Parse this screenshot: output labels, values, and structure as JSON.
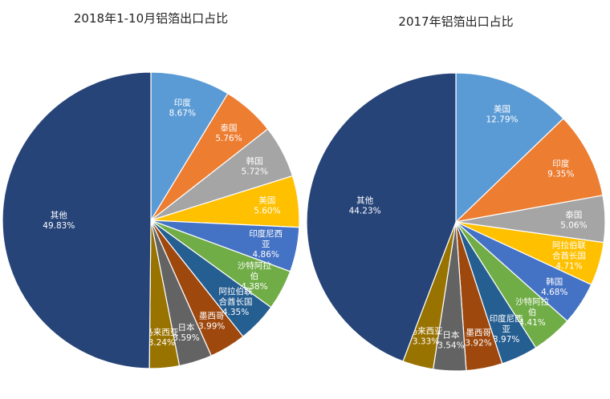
{
  "chart_data": [
    {
      "type": "pie",
      "title": "2018年1-10月铝箔出口占比",
      "slices": [
        {
          "name": "印度",
          "value": 8.67,
          "label": "8.67%",
          "color": "#5b9bd5"
        },
        {
          "name": "泰国",
          "value": 5.76,
          "label": "5.76%",
          "color": "#ed7d31"
        },
        {
          "name": "韩国",
          "value": 5.72,
          "label": "5.72%",
          "color": "#a5a5a5"
        },
        {
          "name": "美国",
          "value": 5.6,
          "label": "5.60%",
          "color": "#ffc000"
        },
        {
          "name": "印度尼西亚",
          "value": 4.86,
          "label": "4.86%",
          "color": "#4472c4"
        },
        {
          "name": "沙特阿拉伯",
          "value": 4.38,
          "label": "4.38%",
          "color": "#70ad47"
        },
        {
          "name": "阿拉伯联合酋长国",
          "value": 4.35,
          "label": "4.35%",
          "color": "#255e91"
        },
        {
          "name": "墨西哥",
          "value": 3.99,
          "label": "3.99%",
          "color": "#9e480e"
        },
        {
          "name": "日本",
          "value": 3.59,
          "label": "3.59%",
          "color": "#636363"
        },
        {
          "name": "马来西亚",
          "value": 3.24,
          "label": "3.24%",
          "color": "#997300"
        },
        {
          "name": "其他",
          "value": 49.83,
          "label": "49.83%",
          "color": "#264478"
        }
      ]
    },
    {
      "type": "pie",
      "title": "2017年铝箔出口占比",
      "slices": [
        {
          "name": "美国",
          "value": 12.79,
          "label": "12.79%",
          "color": "#5b9bd5"
        },
        {
          "name": "印度",
          "value": 9.35,
          "label": "9.35%",
          "color": "#ed7d31"
        },
        {
          "name": "泰国",
          "value": 5.06,
          "label": "5.06%",
          "color": "#a5a5a5"
        },
        {
          "name": "阿拉伯联合酋长国",
          "value": 4.71,
          "label": "4.71%",
          "color": "#ffc000"
        },
        {
          "name": "韩国",
          "value": 4.68,
          "label": "4.68%",
          "color": "#4472c4"
        },
        {
          "name": "沙特阿拉伯",
          "value": 4.41,
          "label": "4.41%",
          "color": "#70ad47"
        },
        {
          "name": "印度尼西亚",
          "value": 3.97,
          "label": "3.97%",
          "color": "#255e91"
        },
        {
          "name": "墨西哥",
          "value": 3.92,
          "label": "3.92%",
          "color": "#9e480e"
        },
        {
          "name": "日本",
          "value": 3.54,
          "label": "3.54%",
          "color": "#636363"
        },
        {
          "name": "马来西亚",
          "value": 3.33,
          "label": "3.33%",
          "color": "#997300"
        },
        {
          "name": "其他",
          "value": 44.23,
          "label": "44.23%",
          "color": "#264478"
        }
      ]
    }
  ]
}
